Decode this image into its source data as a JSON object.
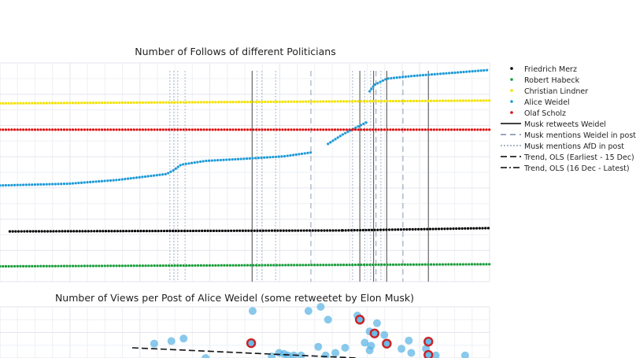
{
  "chart_data": [
    {
      "type": "scatter",
      "title": "Number of Follows of different Politicians",
      "xlabel": "",
      "ylabel": "",
      "grid": true,
      "legend_placement": "right",
      "x_range": [
        0,
        100
      ],
      "y_range": [
        0,
        100
      ],
      "series": [
        {
          "name": "Friedrich Merz",
          "color": "#000000",
          "marker": "dot",
          "segments": [
            [
              [
                2,
                23
              ],
              [
                70,
                23.4
              ]
            ],
            [
              [
                70,
                23.4
              ],
              [
                100,
                24.5
              ]
            ]
          ]
        },
        {
          "name": "Robert Habeck",
          "color": "#1a9e3a",
          "marker": "dot",
          "segments": [
            [
              [
                0,
                7
              ],
              [
                100,
                8
              ]
            ]
          ]
        },
        {
          "name": "Christian Lindner",
          "color": "#f2e200",
          "marker": "dot",
          "segments": [
            [
              [
                0,
                81.5
              ],
              [
                100,
                82.8
              ]
            ]
          ]
        },
        {
          "name": "Alice Weidel",
          "color": "#1e9bd7",
          "marker": "dot",
          "segments": [
            [
              [
                0,
                44
              ],
              [
                14,
                44.8
              ],
              [
                24,
                46.5
              ],
              [
                34,
                49.2
              ],
              [
                35.5,
                51
              ],
              [
                37,
                53.5
              ],
              [
                42,
                55.2
              ],
              [
                50,
                56.2
              ],
              [
                58,
                57.3
              ],
              [
                64,
                59.2
              ]
            ],
            [
              [
                67,
                63
              ],
              [
                70,
                67.3
              ],
              [
                72.5,
                70.2
              ],
              [
                75,
                73
              ]
            ],
            [
              [
                75.5,
                87
              ],
              [
                76.5,
                90
              ],
              [
                79,
                92.8
              ],
              [
                84,
                94
              ],
              [
                100,
                96.8
              ]
            ]
          ]
        },
        {
          "name": "Olaf Scholz",
          "color": "#dd1111",
          "marker": "dot",
          "segments": [
            [
              [
                0,
                69.5
              ],
              [
                100,
                69.5
              ]
            ]
          ]
        }
      ],
      "events": [
        {
          "name": "Musk retweets Weidel",
          "style": "solid",
          "x": [
            51.5,
            73.5,
            76.3,
            79,
            87.5
          ]
        },
        {
          "name": "Musk mentions Weidel in post",
          "style": "dashed",
          "x": [
            63.5,
            76.8,
            82.3
          ]
        },
        {
          "name": "Musk mentions AfD in post",
          "style": "dotted",
          "x": [
            34.7,
            35.5,
            36.3,
            37.8,
            52.5,
            53.5,
            56.3,
            72,
            74.5,
            75.7,
            77.8
          ]
        },
        {
          "name": "Trend, OLS (Earliest - 15 Dec)",
          "style": "dash-long",
          "x": []
        },
        {
          "name": "Trend, OLS (16 Dec - Latest)",
          "style": "dash-dot",
          "x": []
        }
      ]
    },
    {
      "type": "scatter",
      "title": "Number of Views per Post of Alice Weidel (some retweetet by Elon Musk)",
      "xlabel": "",
      "ylabel": "",
      "grid": true,
      "x_range": [
        0,
        100
      ],
      "y_range": [
        0,
        100
      ],
      "series": [
        {
          "name": "",
          "color": "#5ab4e5",
          "points": [
            [
              31.5,
              28
            ],
            [
              35,
              33
            ],
            [
              37.5,
              38
            ],
            [
              42,
              0
            ],
            [
              51.6,
              92
            ],
            [
              57,
              10
            ],
            [
              58,
              8
            ],
            [
              60,
              5
            ],
            [
              61.5,
              5
            ],
            [
              63,
              92
            ],
            [
              65.5,
              100
            ],
            [
              67,
              75
            ],
            [
              68.5,
              10
            ],
            [
              70.5,
              20
            ],
            [
              73,
              83
            ],
            [
              74.5,
              30
            ],
            [
              75.5,
              52
            ],
            [
              75.5,
              15
            ],
            [
              75.8,
              24
            ],
            [
              77,
              68
            ],
            [
              78.5,
              45
            ],
            [
              82,
              18
            ],
            [
              83.5,
              34
            ],
            [
              84,
              10
            ],
            [
              87,
              18
            ],
            [
              89,
              5
            ],
            [
              95,
              5
            ],
            [
              65,
              22
            ],
            [
              66.5,
              5
            ],
            [
              58.8,
              5
            ],
            [
              55.5,
              3
            ]
          ]
        },
        {
          "name": "",
          "color": "#5ab4e5",
          "ring": "#cc2222",
          "points": [
            [
              51.3,
              29
            ],
            [
              73.5,
              75
            ],
            [
              76.5,
              48
            ],
            [
              79,
              28
            ],
            [
              87.5,
              32
            ],
            [
              87.5,
              6
            ]
          ]
        }
      ],
      "trend": {
        "style": "dash-long",
        "points": [
          [
            27,
            20
          ],
          [
            73,
            0
          ]
        ]
      }
    }
  ]
}
